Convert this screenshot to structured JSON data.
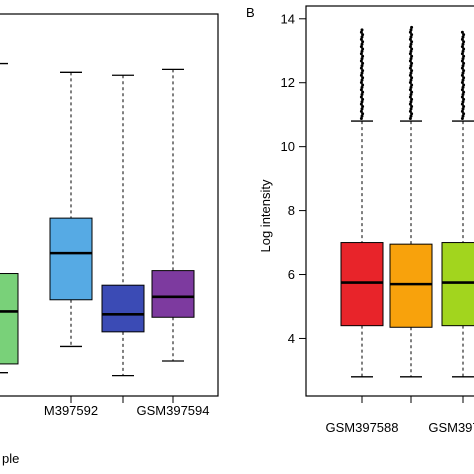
{
  "chart_data": [
    {
      "type": "box",
      "panel": "A",
      "panel_label_visible": false,
      "xlabel": "ple",
      "ylabel": "",
      "ylim": [
        1.7,
        14.8
      ],
      "x_tick_labels_visible": [
        "M397592",
        "GSM397594"
      ],
      "boxes": [
        {
          "label": "",
          "color": "#79d179",
          "whisker_low": 2.5,
          "q1": 2.8,
          "median": 4.6,
          "q3": 5.9,
          "whisker_high": 13.1
        },
        {
          "label": "GSM397592",
          "color": "#56aae4",
          "whisker_low": 3.4,
          "q1": 5.0,
          "median": 6.6,
          "q3": 7.8,
          "whisker_high": 12.8
        },
        {
          "label": "",
          "color": "#3b4bb5",
          "whisker_low": 2.4,
          "q1": 3.9,
          "median": 4.5,
          "q3": 5.5,
          "whisker_high": 12.7
        },
        {
          "label": "GSM397594",
          "color": "#7d3a9f",
          "whisker_low": 2.9,
          "q1": 4.4,
          "median": 5.1,
          "q3": 6.0,
          "whisker_high": 12.9
        }
      ]
    },
    {
      "type": "box",
      "panel": "B",
      "panel_label": "B",
      "ylabel": "Log intensity",
      "xlabel": "",
      "ylim": [
        2.2,
        14.4
      ],
      "y_ticks": [
        4,
        6,
        8,
        10,
        12,
        14
      ],
      "x_tick_labels_visible": [
        "GSM397588",
        "GSM397"
      ],
      "boxes": [
        {
          "label": "GSM397588",
          "color": "#e8242a",
          "whisker_low": 2.8,
          "q1": 4.4,
          "median": 5.75,
          "q3": 7.0,
          "whisker_high": 10.8,
          "outliers_up_to": 13.7
        },
        {
          "label": "",
          "color": "#f8a20c",
          "whisker_low": 2.8,
          "q1": 4.35,
          "median": 5.7,
          "q3": 6.95,
          "whisker_high": 10.8,
          "outliers_up_to": 13.8
        },
        {
          "label": "GSM397",
          "color": "#a2d51e",
          "whisker_low": 2.8,
          "q1": 4.4,
          "median": 5.75,
          "q3": 7.0,
          "whisker_high": 10.8,
          "outliers_up_to": 13.6
        }
      ]
    }
  ]
}
